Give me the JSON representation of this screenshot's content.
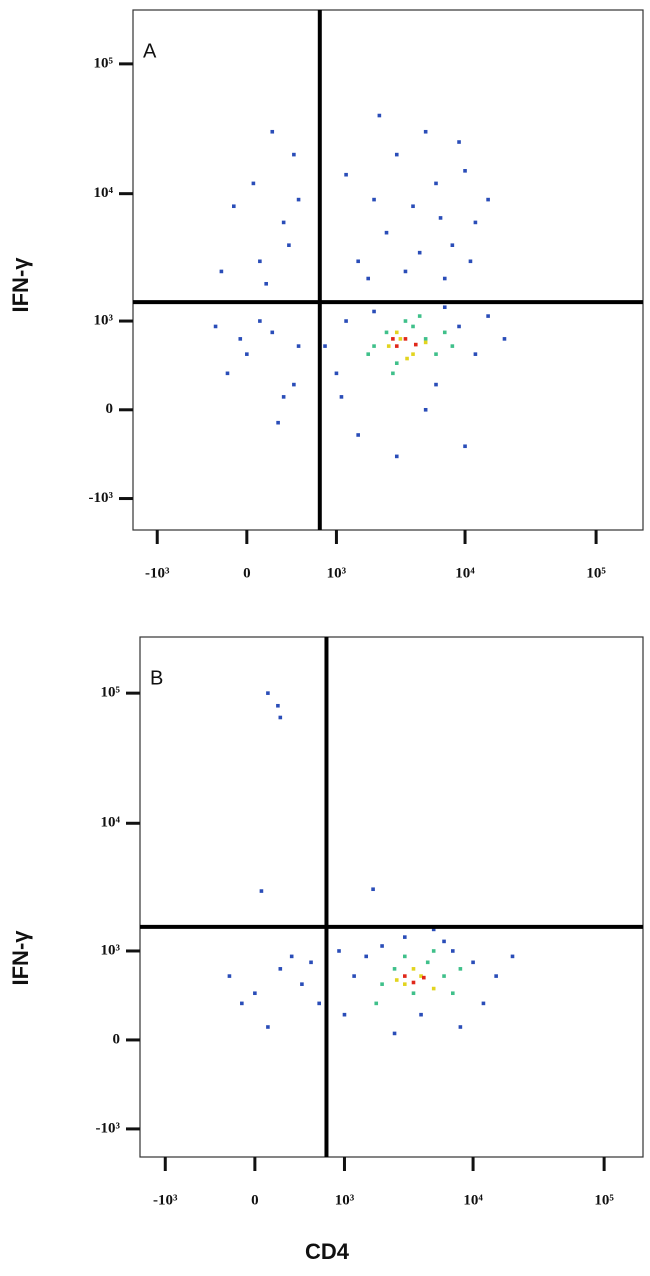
{
  "chart_data": [
    {
      "type": "scatter",
      "title": "A",
      "y_label": "IFN-γ",
      "xscale": "biexponential",
      "yscale": "biexponential",
      "xlim": [
        -1570,
        228000
      ],
      "ylim": [
        -1800,
        260000
      ],
      "xticks": [
        {
          "value": -1000,
          "label": "-10³"
        },
        0,
        {
          "value": 1000,
          "label": "10³"
        },
        {
          "value": 10000,
          "label": "10⁴"
        },
        {
          "value": 100000,
          "label": "10⁵"
        }
      ],
      "yticks": [
        {
          "value": -1000,
          "label": "-10³"
        },
        0,
        {
          "value": 1000,
          "label": "10³"
        },
        {
          "value": 10000,
          "label": "10⁴"
        },
        {
          "value": 100000,
          "label": "10⁵"
        }
      ],
      "gate_x": 720,
      "gate_y": 1430,
      "series": [
        {
          "color": "#2a4db8",
          "x": [
            1500,
            2500,
            4000,
            6000,
            3000,
            8000,
            10000,
            2000,
            5000,
            12000,
            3500,
            7000,
            1200,
            9000,
            4500,
            15000,
            2200,
            6500,
            1800,
            11000,
            100,
            300,
            -200,
            50,
            400,
            200,
            -100,
            350,
            150,
            450,
            0,
            200,
            -150,
            400,
            100,
            300,
            -50,
            450,
            250,
            -250,
            1000,
            1200,
            1500,
            2000,
            6000,
            9000,
            12000,
            15000,
            800,
            10000,
            3000,
            20000,
            1100,
            7000,
            5000
          ],
          "values": [
            3000,
            5000,
            8000,
            12000,
            20000,
            4000,
            15000,
            9000,
            30000,
            6000,
            2500,
            2200,
            14000,
            25000,
            3500,
            9000,
            40000,
            6500,
            2200,
            3000,
            3000,
            6000,
            2500,
            12000,
            20000,
            30000,
            8000,
            4000,
            2000,
            9000,
            500,
            800,
            300,
            200,
            1000,
            100,
            700,
            600,
            -100,
            900,
            300,
            1000,
            -200,
            1200,
            200,
            900,
            500,
            1100,
            600,
            -300,
            -400,
            700,
            100,
            1300,
            0
          ]
        },
        {
          "color": "#3fc08a",
          "x": [
            2000,
            2500,
            3000,
            4000,
            5000,
            6000,
            7000,
            1800,
            3500,
            8000,
            2800,
            4500
          ],
          "values": [
            600,
            800,
            400,
            900,
            700,
            500,
            800,
            500,
            1000,
            600,
            300,
            1100
          ]
        },
        {
          "color": "#e2d41f",
          "x": [
            2600,
            3200,
            4000,
            3000,
            5000,
            3600
          ],
          "values": [
            600,
            700,
            500,
            800,
            650,
            450
          ]
        },
        {
          "color": "#e0281a",
          "x": [
            3000,
            3500,
            4200,
            2800
          ],
          "values": [
            600,
            700,
            620,
            700
          ]
        }
      ]
    },
    {
      "type": "scatter",
      "title": "B",
      "y_label": "IFN-γ",
      "x_label": "CD4",
      "xscale": "biexponential",
      "yscale": "biexponential",
      "xlim": [
        -1600,
        198000
      ],
      "ylim": [
        -1690,
        270000
      ],
      "xticks": [
        {
          "value": -1000,
          "label": "-10³"
        },
        0,
        {
          "value": 1000,
          "label": "10³"
        },
        {
          "value": 10000,
          "label": "10⁴"
        },
        {
          "value": 100000,
          "label": "10⁵"
        }
      ],
      "yticks": [
        {
          "value": -1000,
          "label": "-10³"
        },
        0,
        {
          "value": 1000,
          "label": "10³"
        },
        {
          "value": 10000,
          "label": "10⁴"
        },
        {
          "value": 100000,
          "label": "10⁵"
        }
      ],
      "gate_x": 700,
      "gate_y": 1570,
      "series": [
        {
          "color": "#2a4db8",
          "x": [
            100,
            180,
            200,
            50,
            1700,
            0,
            200,
            -100,
            400,
            300,
            100,
            500,
            -200,
            600,
            1000,
            1500,
            2000,
            6000,
            10000,
            15000,
            20000,
            12000,
            8000,
            1200,
            3000,
            5000,
            2500,
            4000,
            7000,
            900
          ],
          "values": [
            100000,
            80000,
            65000,
            3000,
            3100,
            400,
            700,
            300,
            500,
            900,
            100,
            800,
            600,
            300,
            200,
            900,
            1100,
            1200,
            800,
            600,
            900,
            300,
            100,
            600,
            1300,
            1500,
            50,
            200,
            1000,
            1000
          ]
        },
        {
          "color": "#3fc08a",
          "x": [
            2000,
            2500,
            3500,
            4500,
            6000,
            7000,
            3000,
            1800,
            5000,
            8000
          ],
          "values": [
            500,
            700,
            400,
            800,
            600,
            400,
            900,
            300,
            1000,
            700
          ]
        },
        {
          "color": "#e2d41f",
          "x": [
            3000,
            4000,
            3500,
            5000,
            2600
          ],
          "values": [
            500,
            600,
            700,
            450,
            550
          ]
        },
        {
          "color": "#e0281a",
          "x": [
            3500,
            4200,
            3000
          ],
          "values": [
            520,
            580,
            600
          ]
        }
      ]
    }
  ]
}
